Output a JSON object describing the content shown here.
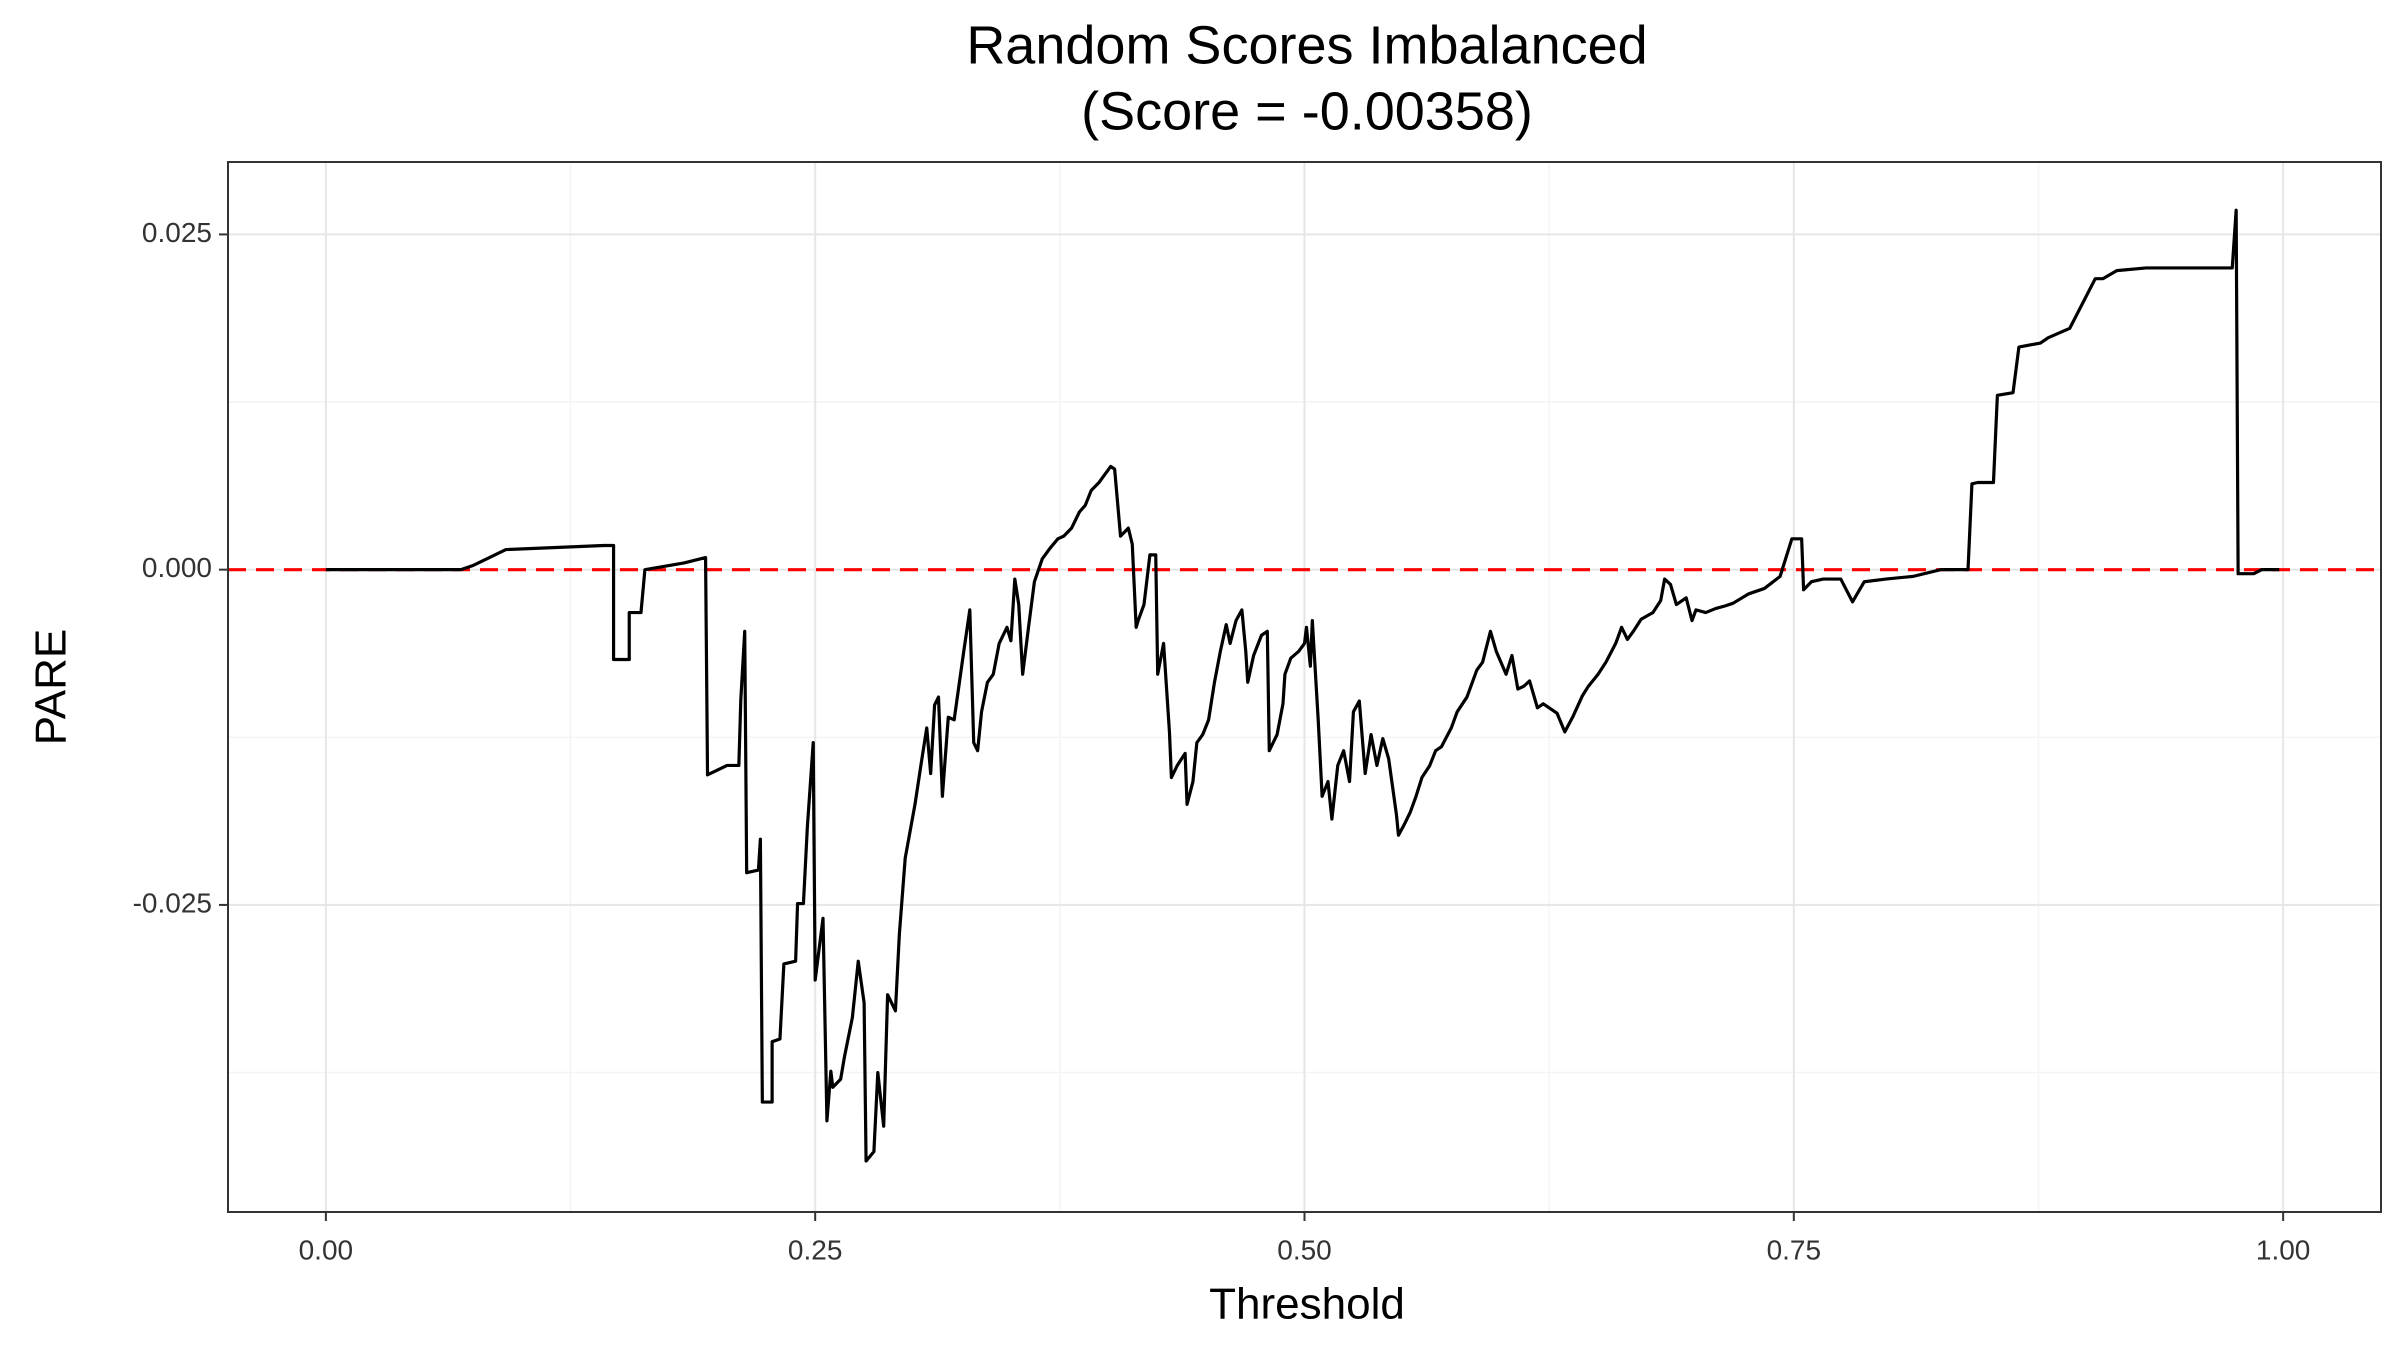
{
  "chart_data": {
    "type": "line",
    "title": [
      "Random Scores Imbalanced",
      "(Score = -0.00358)"
    ],
    "x_label": "Threshold",
    "y_label": "PARE",
    "xlim": [
      -0.05,
      1.05
    ],
    "ylim": [
      -0.0479,
      0.0304
    ],
    "xticks": [
      {
        "value": 0,
        "label": "0.00"
      },
      {
        "value": 0.25,
        "label": "0.25"
      },
      {
        "value": 0.5,
        "label": "0.50"
      },
      {
        "value": 0.75,
        "label": "0.75"
      },
      {
        "value": 1,
        "label": "1.00"
      }
    ],
    "yticks": [
      -0.025,
      {
        "value": 0,
        "label": "0.000"
      },
      0.025
    ],
    "grid": true,
    "minor_grid": true,
    "hline": {
      "y": 0,
      "color": "#ff0000",
      "dashed": true
    },
    "x": [
      0.0,
      0.069,
      0.075,
      0.092,
      0.142,
      0.147,
      0.147,
      0.155,
      0.155,
      0.161,
      0.163,
      0.183,
      0.194,
      0.195,
      0.205,
      0.211,
      0.212,
      0.214,
      0.215,
      0.221,
      0.222,
      0.223,
      0.228,
      0.228,
      0.232,
      0.234,
      0.24,
      0.241,
      0.244,
      0.246,
      0.249,
      0.25,
      0.254,
      0.256,
      0.258,
      0.259,
      0.263,
      0.265,
      0.269,
      0.272,
      0.275,
      0.276,
      0.28,
      0.282,
      0.285,
      0.287,
      0.291,
      0.293,
      0.296,
      0.301,
      0.304,
      0.307,
      0.309,
      0.311,
      0.313,
      0.315,
      0.318,
      0.321,
      0.326,
      0.329,
      0.331,
      0.333,
      0.335,
      0.338,
      0.341,
      0.344,
      0.348,
      0.35,
      0.352,
      0.354,
      0.356,
      0.359,
      0.362,
      0.366,
      0.37,
      0.374,
      0.377,
      0.381,
      0.385,
      0.388,
      0.391,
      0.395,
      0.398,
      0.401,
      0.403,
      0.406,
      0.41,
      0.412,
      0.414,
      0.415,
      0.418,
      0.421,
      0.424,
      0.425,
      0.428,
      0.431,
      0.432,
      0.435,
      0.439,
      0.44,
      0.443,
      0.445,
      0.448,
      0.451,
      0.454,
      0.457,
      0.46,
      0.462,
      0.465,
      0.468,
      0.47,
      0.471,
      0.474,
      0.478,
      0.481,
      0.482,
      0.486,
      0.489,
      0.49,
      0.493,
      0.497,
      0.5,
      0.501,
      0.503,
      0.504,
      0.507,
      0.509,
      0.512,
      0.514,
      0.517,
      0.52,
      0.523,
      0.525,
      0.528,
      0.531,
      0.534,
      0.537,
      0.54,
      0.543,
      0.547,
      0.548,
      0.551,
      0.554,
      0.557,
      0.56,
      0.564,
      0.567,
      0.57,
      0.575,
      0.578,
      0.583,
      0.588,
      0.591,
      0.595,
      0.598,
      0.603,
      0.606,
      0.609,
      0.612,
      0.615,
      0.619,
      0.622,
      0.629,
      0.633,
      0.637,
      0.642,
      0.645,
      0.65,
      0.654,
      0.659,
      0.662,
      0.665,
      0.668,
      0.672,
      0.678,
      0.682,
      0.684,
      0.687,
      0.69,
      0.695,
      0.698,
      0.7,
      0.705,
      0.71,
      0.715,
      0.719,
      0.727,
      0.735,
      0.743,
      0.749,
      0.754,
      0.755,
      0.759,
      0.765,
      0.774,
      0.78,
      0.786,
      0.797,
      0.811,
      0.825,
      0.839,
      0.841,
      0.844,
      0.852,
      0.854,
      0.862,
      0.865,
      0.876,
      0.88,
      0.891,
      0.904,
      0.908,
      0.915,
      0.93,
      0.974,
      0.976,
      0.977,
      0.985,
      0.989,
      0.998
    ],
    "series": [
      {
        "color": "#000000",
        "values": [
          0,
          0,
          0.0003,
          0.0015,
          0.0018,
          0.0018,
          -0.0067,
          -0.0067,
          -0.0032,
          -0.0032,
          0,
          0.0005,
          0.0009,
          -0.0153,
          -0.0146,
          -0.0146,
          -0.0097,
          -0.0046,
          -0.0226,
          -0.0224,
          -0.0201,
          -0.0397,
          -0.0397,
          -0.0352,
          -0.035,
          -0.0294,
          -0.0292,
          -0.0249,
          -0.0249,
          -0.0192,
          -0.0129,
          -0.0306,
          -0.026,
          -0.0411,
          -0.0374,
          -0.0386,
          -0.038,
          -0.0363,
          -0.0334,
          -0.0292,
          -0.0323,
          -0.0441,
          -0.0434,
          -0.0375,
          -0.0415,
          -0.0317,
          -0.0329,
          -0.0272,
          -0.0215,
          -0.0175,
          -0.0146,
          -0.0118,
          -0.0152,
          -0.0101,
          -0.0095,
          -0.0169,
          -0.011,
          -0.0112,
          -0.006,
          -0.003,
          -0.0129,
          -0.0135,
          -0.0106,
          -0.0084,
          -0.0078,
          -0.0055,
          -0.0043,
          -0.0053,
          -0.0007,
          -0.0026,
          -0.0078,
          -0.0043,
          -0.0009,
          0.0008,
          0.0016,
          0.0023,
          0.0025,
          0.0031,
          0.0043,
          0.0048,
          0.0059,
          0.0065,
          0.0071,
          0.0077,
          0.0075,
          0.0025,
          0.0031,
          0.0019,
          -0.0043,
          -0.0038,
          -0.0026,
          0.0011,
          0.0011,
          -0.0078,
          -0.0055,
          -0.0121,
          -0.0155,
          -0.0146,
          -0.0137,
          -0.0175,
          -0.0158,
          -0.0129,
          -0.0123,
          -0.0112,
          -0.0084,
          -0.0061,
          -0.0041,
          -0.0055,
          -0.0038,
          -0.003,
          -0.0061,
          -0.0084,
          -0.0064,
          -0.0049,
          -0.0046,
          -0.0135,
          -0.0123,
          -0.01,
          -0.0078,
          -0.0066,
          -0.0061,
          -0.0055,
          -0.0043,
          -0.0072,
          -0.0038,
          -0.0112,
          -0.0169,
          -0.0158,
          -0.0186,
          -0.0146,
          -0.0135,
          -0.0158,
          -0.0106,
          -0.0098,
          -0.0152,
          -0.0123,
          -0.0146,
          -0.0126,
          -0.0141,
          -0.0183,
          -0.0198,
          -0.019,
          -0.0181,
          -0.0169,
          -0.0155,
          -0.0146,
          -0.0135,
          -0.0132,
          -0.0118,
          -0.0106,
          -0.0095,
          -0.0075,
          -0.0069,
          -0.0046,
          -0.0061,
          -0.0078,
          -0.0064,
          -0.0089,
          -0.0087,
          -0.0083,
          -0.0103,
          -0.01,
          -0.0107,
          -0.0121,
          -0.011,
          -0.0094,
          -0.0087,
          -0.0078,
          -0.0069,
          -0.0055,
          -0.0043,
          -0.0052,
          -0.0046,
          -0.0037,
          -0.0032,
          -0.0023,
          -0.0007,
          -0.0011,
          -0.0026,
          -0.0021,
          -0.0038,
          -0.003,
          -0.0032,
          -0.0029,
          -0.0027,
          -0.0025,
          -0.0018,
          -0.0014,
          -0.0005,
          0.0023,
          0.0023,
          -0.0015,
          -0.0009,
          -0.0007,
          -0.0007,
          -0.0024,
          -0.0009,
          -0.0007,
          -0.0005,
          0,
          0,
          0.0064,
          0.0065,
          0.0065,
          0.013,
          0.0132,
          0.0166,
          0.0169,
          0.0173,
          0.018,
          0.0217,
          0.0217,
          0.0223,
          0.0225,
          0.0225,
          0.0268,
          -0.0003,
          -0.0003,
          0,
          0
        ]
      }
    ]
  }
}
